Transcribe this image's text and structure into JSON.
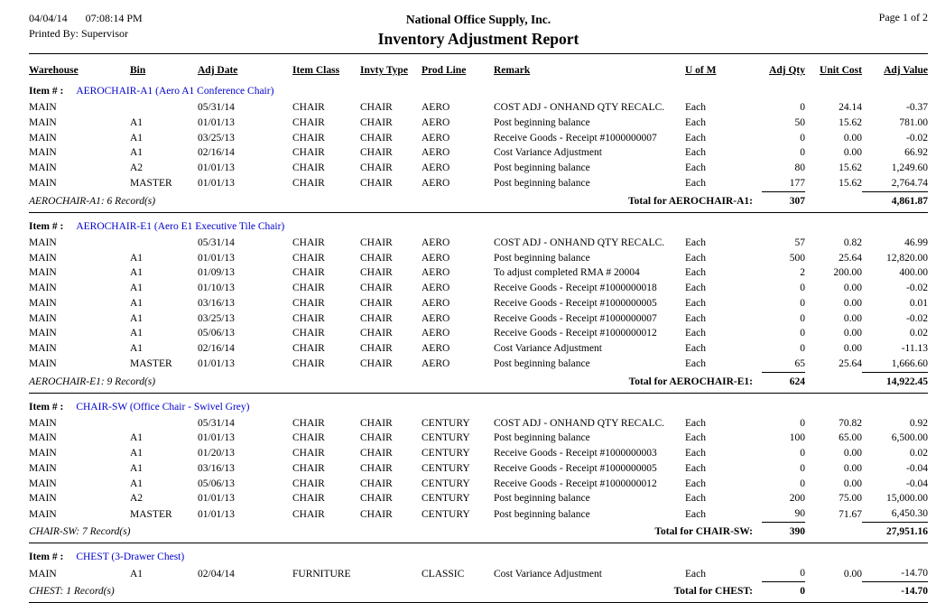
{
  "colors": {
    "item_link": "#0000cc"
  },
  "header": {
    "date": "04/04/14",
    "time": "07:08:14 PM",
    "printed_by": "Printed By: Supervisor",
    "company": "National Office Supply, Inc.",
    "title": "Inventory Adjustment Report",
    "page": "Page 1 of  2"
  },
  "labels": {
    "item_prefix": "Item # :"
  },
  "columns": [
    "Warehouse",
    "Bin",
    "Adj Date",
    "Item Class",
    "Invty Type",
    "Prod Line",
    "Remark",
    "U of M",
    "Adj Qty",
    "Unit Cost",
    "Adj Value"
  ],
  "groups": [
    {
      "item_name": "AEROCHAIR-A1 (Aero A1 Conference Chair)",
      "rows": [
        [
          "MAIN",
          "",
          "05/31/14",
          "CHAIR",
          "CHAIR",
          "AERO",
          "COST ADJ - ONHAND QTY RECALC.",
          "Each",
          "0",
          "24.14",
          "-0.37"
        ],
        [
          "MAIN",
          "A1",
          "01/01/13",
          "CHAIR",
          "CHAIR",
          "AERO",
          "Post beginning balance",
          "Each",
          "50",
          "15.62",
          "781.00"
        ],
        [
          "MAIN",
          "A1",
          "03/25/13",
          "CHAIR",
          "CHAIR",
          "AERO",
          "Receive Goods - Receipt #1000000007",
          "Each",
          "0",
          "0.00",
          "-0.02"
        ],
        [
          "MAIN",
          "A1",
          "02/16/14",
          "CHAIR",
          "CHAIR",
          "AERO",
          "Cost Variance Adjustment",
          "Each",
          "0",
          "0.00",
          "66.92"
        ],
        [
          "MAIN",
          "A2",
          "01/01/13",
          "CHAIR",
          "CHAIR",
          "AERO",
          "Post beginning balance",
          "Each",
          "80",
          "15.62",
          "1,249.60"
        ],
        [
          "MAIN",
          "MASTER",
          "01/01/13",
          "CHAIR",
          "CHAIR",
          "AERO",
          "Post beginning balance",
          "Each",
          "177",
          "15.62",
          "2,764.74"
        ]
      ],
      "record_count": "AEROCHAIR-A1: 6 Record(s)",
      "total_label": "Total for AEROCHAIR-A1:",
      "total_qty": "307",
      "total_value": "4,861.87"
    },
    {
      "item_name": "AEROCHAIR-E1 (Aero E1 Executive Tile Chair)",
      "rows": [
        [
          "MAIN",
          "",
          "05/31/14",
          "CHAIR",
          "CHAIR",
          "AERO",
          "COST ADJ - ONHAND QTY RECALC.",
          "Each",
          "57",
          "0.82",
          "46.99"
        ],
        [
          "MAIN",
          "A1",
          "01/01/13",
          "CHAIR",
          "CHAIR",
          "AERO",
          "Post beginning balance",
          "Each",
          "500",
          "25.64",
          "12,820.00"
        ],
        [
          "MAIN",
          "A1",
          "01/09/13",
          "CHAIR",
          "CHAIR",
          "AERO",
          "To adjust completed RMA # 20004",
          "Each",
          "2",
          "200.00",
          "400.00"
        ],
        [
          "MAIN",
          "A1",
          "01/10/13",
          "CHAIR",
          "CHAIR",
          "AERO",
          "Receive Goods - Receipt #1000000018",
          "Each",
          "0",
          "0.00",
          "-0.02"
        ],
        [
          "MAIN",
          "A1",
          "03/16/13",
          "CHAIR",
          "CHAIR",
          "AERO",
          "Receive Goods - Receipt #1000000005",
          "Each",
          "0",
          "0.00",
          "0.01"
        ],
        [
          "MAIN",
          "A1",
          "03/25/13",
          "CHAIR",
          "CHAIR",
          "AERO",
          "Receive Goods - Receipt #1000000007",
          "Each",
          "0",
          "0.00",
          "-0.02"
        ],
        [
          "MAIN",
          "A1",
          "05/06/13",
          "CHAIR",
          "CHAIR",
          "AERO",
          "Receive Goods - Receipt #1000000012",
          "Each",
          "0",
          "0.00",
          "0.02"
        ],
        [
          "MAIN",
          "A1",
          "02/16/14",
          "CHAIR",
          "CHAIR",
          "AERO",
          "Cost Variance Adjustment",
          "Each",
          "0",
          "0.00",
          "-11.13"
        ],
        [
          "MAIN",
          "MASTER",
          "01/01/13",
          "CHAIR",
          "CHAIR",
          "AERO",
          "Post beginning balance",
          "Each",
          "65",
          "25.64",
          "1,666.60"
        ]
      ],
      "record_count": "AEROCHAIR-E1: 9 Record(s)",
      "total_label": "Total for AEROCHAIR-E1:",
      "total_qty": "624",
      "total_value": "14,922.45"
    },
    {
      "item_name": "CHAIR-SW (Office Chair - Swivel Grey)",
      "rows": [
        [
          "MAIN",
          "",
          "05/31/14",
          "CHAIR",
          "CHAIR",
          "CENTURY",
          "COST ADJ - ONHAND QTY RECALC.",
          "Each",
          "0",
          "70.82",
          "0.92"
        ],
        [
          "MAIN",
          "A1",
          "01/01/13",
          "CHAIR",
          "CHAIR",
          "CENTURY",
          "Post beginning balance",
          "Each",
          "100",
          "65.00",
          "6,500.00"
        ],
        [
          "MAIN",
          "A1",
          "01/20/13",
          "CHAIR",
          "CHAIR",
          "CENTURY",
          "Receive Goods - Receipt #1000000003",
          "Each",
          "0",
          "0.00",
          "0.02"
        ],
        [
          "MAIN",
          "A1",
          "03/16/13",
          "CHAIR",
          "CHAIR",
          "CENTURY",
          "Receive Goods - Receipt #1000000005",
          "Each",
          "0",
          "0.00",
          "-0.04"
        ],
        [
          "MAIN",
          "A1",
          "05/06/13",
          "CHAIR",
          "CHAIR",
          "CENTURY",
          "Receive Goods - Receipt #1000000012",
          "Each",
          "0",
          "0.00",
          "-0.04"
        ],
        [
          "MAIN",
          "A2",
          "01/01/13",
          "CHAIR",
          "CHAIR",
          "CENTURY",
          "Post beginning balance",
          "Each",
          "200",
          "75.00",
          "15,000.00"
        ],
        [
          "MAIN",
          "MASTER",
          "01/01/13",
          "CHAIR",
          "CHAIR",
          "CENTURY",
          "Post beginning balance",
          "Each",
          "90",
          "71.67",
          "6,450.30"
        ]
      ],
      "record_count": "CHAIR-SW: 7 Record(s)",
      "total_label": "Total for CHAIR-SW:",
      "total_qty": "390",
      "total_value": "27,951.16"
    },
    {
      "item_name": "CHEST (3-Drawer Chest)",
      "rows": [
        [
          "MAIN",
          "A1",
          "02/04/14",
          "FURNITURE",
          "",
          "CLASSIC",
          "Cost Variance Adjustment",
          "Each",
          "0",
          "0.00",
          "-14.70"
        ]
      ],
      "record_count": "CHEST: 1 Record(s)",
      "total_label": "Total for CHEST:",
      "total_qty": "0",
      "total_value": "-14.70"
    }
  ]
}
